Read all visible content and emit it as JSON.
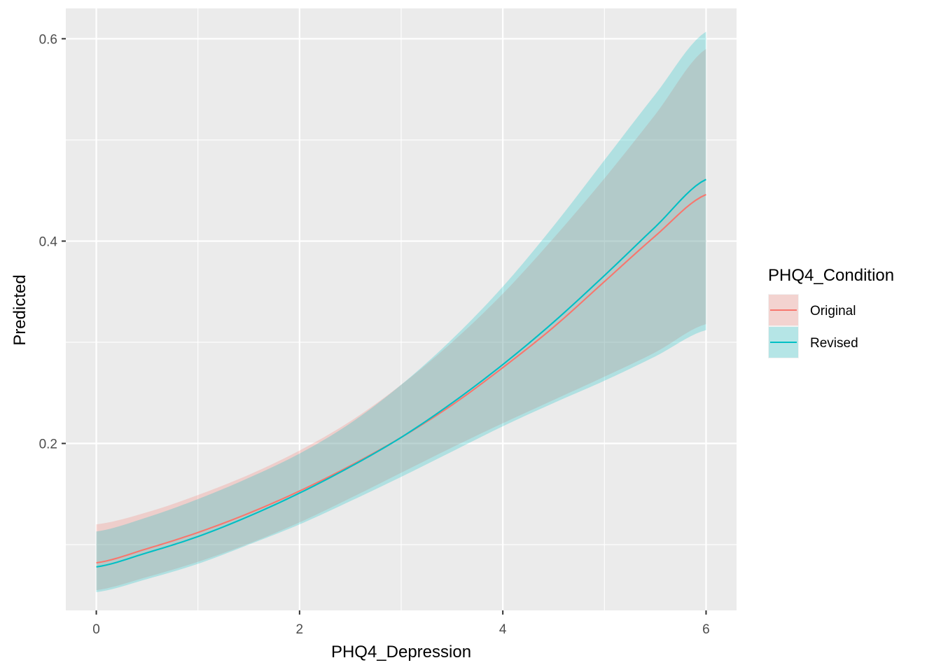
{
  "chart_data": {
    "type": "line",
    "title": "",
    "xlabel": "PHQ4_Depression",
    "ylabel": "Predicted",
    "xlim": [
      -0.3,
      6.3
    ],
    "ylim": [
      0.035,
      0.63
    ],
    "x_ticks": [
      0,
      2,
      4,
      6
    ],
    "x_minor": [
      1,
      3,
      5
    ],
    "y_ticks": [
      0.2,
      0.4,
      0.6
    ],
    "y_tick_labels": [
      "0.2",
      "0.4",
      "0.6"
    ],
    "y_minor": [
      0.1,
      0.3,
      0.5
    ],
    "grid": true,
    "legend": {
      "title": "PHQ4_Condition",
      "position": "right"
    },
    "x": [
      0,
      0.5,
      1,
      1.5,
      2,
      2.5,
      3,
      3.5,
      4,
      4.5,
      5,
      5.5,
      6
    ],
    "series": [
      {
        "name": "Original",
        "color": "#F8766D",
        "values": [
          0.082,
          0.096,
          0.112,
          0.131,
          0.153,
          0.178,
          0.206,
          0.238,
          0.275,
          0.315,
          0.36,
          0.405,
          0.446
        ],
        "lower": [
          0.055,
          0.068,
          0.083,
          0.101,
          0.122,
          0.146,
          0.171,
          0.196,
          0.22,
          0.243,
          0.266,
          0.29,
          0.318
        ],
        "upper": [
          0.12,
          0.132,
          0.149,
          0.169,
          0.193,
          0.222,
          0.258,
          0.3,
          0.348,
          0.403,
          0.462,
          0.525,
          0.59
        ]
      },
      {
        "name": "Revised",
        "color": "#00BFC4",
        "values": [
          0.078,
          0.092,
          0.108,
          0.128,
          0.151,
          0.177,
          0.206,
          0.24,
          0.278,
          0.32,
          0.366,
          0.414,
          0.461
        ],
        "lower": [
          0.053,
          0.066,
          0.081,
          0.1,
          0.12,
          0.143,
          0.167,
          0.192,
          0.217,
          0.24,
          0.262,
          0.286,
          0.312
        ],
        "upper": [
          0.113,
          0.127,
          0.145,
          0.166,
          0.19,
          0.22,
          0.258,
          0.303,
          0.355,
          0.415,
          0.48,
          0.545,
          0.607
        ]
      }
    ]
  }
}
